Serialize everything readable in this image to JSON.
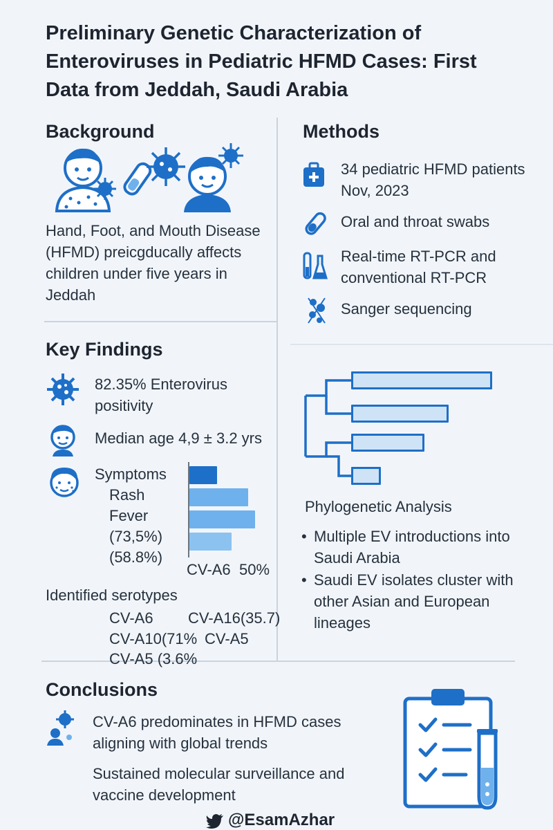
{
  "title": "Preliminary Genetic Characterization of Enteroviruses in Pediatric HFMD Cases: First Data from Jeddah, Saudi Arabia",
  "background": {
    "heading": "Background",
    "text": "Hand, Foot, and Mouth Disease (HFMD) preicgducally affects children under five years in Jeddah"
  },
  "methods": {
    "heading": "Methods",
    "items": [
      {
        "icon": "medical-kit-icon",
        "text": "34 pediatric HFMD patients Nov, 2023"
      },
      {
        "icon": "swab-tube-icon",
        "text": "Oral and throat swabs"
      },
      {
        "icon": "lab-flask-icon",
        "text": "Real-time RT-PCR and conventional RT-PCR"
      },
      {
        "icon": "dna-sequencing-icon",
        "text": "Sanger sequencing"
      }
    ]
  },
  "findings": {
    "heading": "Key Findings",
    "positivity": "82.35% Enterovirus positivity",
    "median_age": "Median age 4,9 ± 3.2 yrs",
    "symptoms_label": "Symptoms",
    "rash": "Rash",
    "fever": "Fever",
    "rash_pct": "(73,5%)",
    "fever_pct": "(58.8%)",
    "chart_axis_left": "CV-A6",
    "chart_axis_right": "50%",
    "symptom_bars": [
      0.41,
      0.87,
      0.97,
      0.62
    ],
    "serotypes_heading": "Identified serotypes",
    "serotypes": [
      "CV-A6",
      "CV-A16(35.7)",
      "CV-A10(71%",
      "CV-A5",
      "CV-A5 (3.6%"
    ]
  },
  "phylogenetic": {
    "label": "Phylogenetic Analysis",
    "bullets": [
      "Multiple EV introductions into Saudi Arabia",
      "Saudi EV isolates cluster with other Asian and European lineages"
    ],
    "bar_values": [
      1.0,
      0.69,
      0.52,
      0.21
    ]
  },
  "conclusions": {
    "heading": "Conclusions",
    "point1": "CV-A6 predominates in HFMD cases aligning with global trends",
    "point2": "Sustained molecular surveillance and vaccine development"
  },
  "footer": {
    "handle": "@EsamAzhar",
    "icon": "twitter-bird-icon"
  },
  "colors": {
    "accent": "#1e6fc7",
    "bar_light": "#6fb1ec",
    "bar_pale": "#cfe3f7"
  }
}
